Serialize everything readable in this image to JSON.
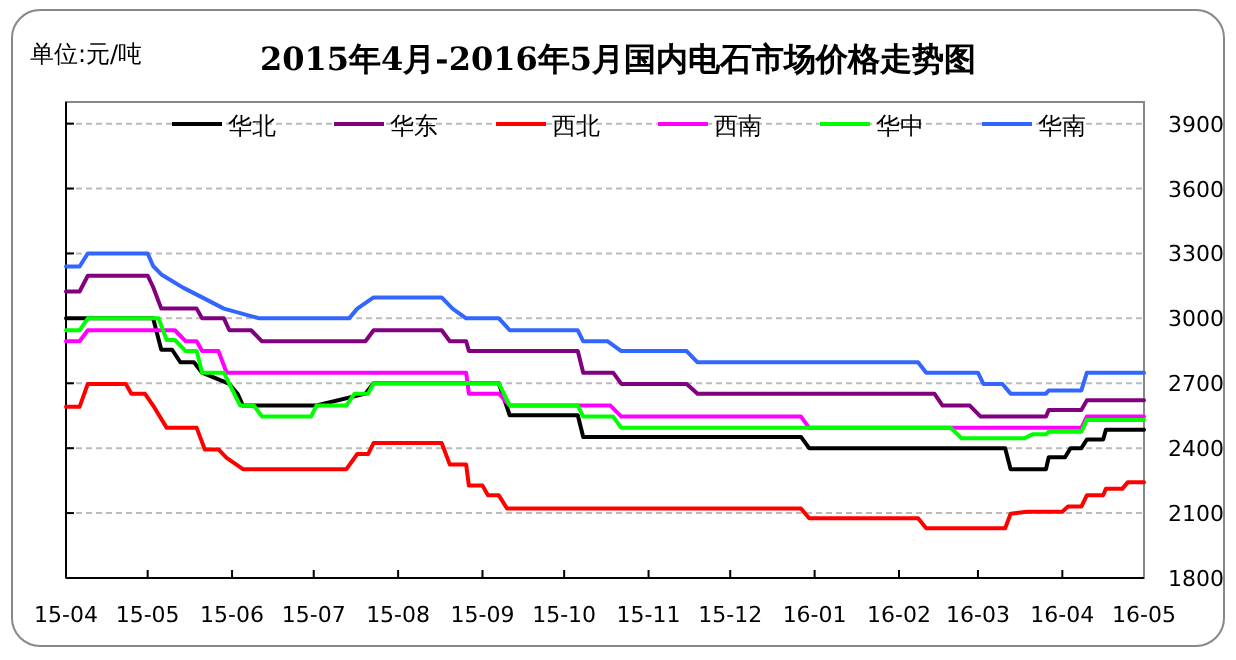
{
  "chart_data": {
    "type": "line",
    "title": "2015年4月-2016年5月国内电石市场价格走势图",
    "ylabel": "单位:元/吨",
    "xlim": [
      "2015-04-01",
      "2016-05-01"
    ],
    "ylim": [
      1800,
      4000
    ],
    "xticks": [
      {
        "value": "2015-04",
        "label": "15-04"
      },
      {
        "value": "2015-05",
        "label": "15-05"
      },
      {
        "value": "2015-06",
        "label": "15-06"
      },
      {
        "value": "2015-07",
        "label": "15-07"
      },
      {
        "value": "2015-08",
        "label": "15-08"
      },
      {
        "value": "2015-09",
        "label": "15-09"
      },
      {
        "value": "2015-10",
        "label": "15-10"
      },
      {
        "value": "2015-11",
        "label": "15-11"
      },
      {
        "value": "2015-12",
        "label": "15-12"
      },
      {
        "value": "2016-01",
        "label": "16-01"
      },
      {
        "value": "2016-02",
        "label": "16-02"
      },
      {
        "value": "2016-03",
        "label": "16-03"
      },
      {
        "value": "2016-04",
        "label": "16-04"
      },
      {
        "value": "2016-05",
        "label": "16-05"
      }
    ],
    "yticks": [
      1800,
      2100,
      2400,
      2700,
      3000,
      3300,
      3600,
      3900
    ],
    "grid": "y",
    "legend": "top",
    "marker": "none",
    "line_style": "solid",
    "series": [
      {
        "name": "华北",
        "color": "#000000",
        "x": [
          "2015-04-01",
          "2015-04-09",
          "2015-05-03",
          "2015-05-06",
          "2015-05-10",
          "2015-05-13",
          "2015-05-18",
          "2015-05-21",
          "2015-05-31",
          "2015-06-03",
          "2015-06-05",
          "2015-07-02",
          "2015-07-20",
          "2015-07-23",
          "2015-09-07",
          "2015-09-11",
          "2015-10-06",
          "2015-10-08",
          "2015-12-27",
          "2015-12-30",
          "2016-03-11",
          "2016-03-13",
          "2016-03-26",
          "2016-03-27",
          "2016-04-02",
          "2016-04-04",
          "2016-04-08",
          "2016-04-10",
          "2016-04-16",
          "2016-04-17",
          "2016-05-01"
        ],
        "values": [
          3000,
          3000,
          3000,
          2855,
          2855,
          2797,
          2797,
          2749,
          2697,
          2652,
          2597,
          2597,
          2652,
          2700,
          2700,
          2552,
          2552,
          2452,
          2452,
          2400,
          2400,
          2303,
          2303,
          2358,
          2358,
          2400,
          2400,
          2440,
          2440,
          2485,
          2485
        ]
      },
      {
        "name": "华东",
        "color": "#800080",
        "x": [
          "2015-04-01",
          "2015-04-06",
          "2015-04-09",
          "2015-05-01",
          "2015-05-03",
          "2015-05-06",
          "2015-05-19",
          "2015-05-21",
          "2015-05-29",
          "2015-05-31",
          "2015-06-08",
          "2015-06-12",
          "2015-07-20",
          "2015-07-23",
          "2015-08-17",
          "2015-08-20",
          "2015-08-26",
          "2015-08-27",
          "2015-10-06",
          "2015-10-08",
          "2015-10-19",
          "2015-10-22",
          "2015-11-15",
          "2015-11-19",
          "2016-02-14",
          "2016-02-17",
          "2016-02-27",
          "2016-03-02",
          "2016-03-26",
          "2016-03-27",
          "2016-04-08",
          "2016-04-10",
          "2016-05-01"
        ],
        "values": [
          3124,
          3124,
          3197,
          3197,
          3145,
          3045,
          3045,
          3000,
          3000,
          2945,
          2945,
          2894,
          2894,
          2945,
          2945,
          2894,
          2894,
          2849,
          2849,
          2749,
          2749,
          2697,
          2697,
          2652,
          2652,
          2597,
          2597,
          2546,
          2546,
          2576,
          2576,
          2621,
          2621
        ]
      },
      {
        "name": "西北",
        "color": "#ff0000",
        "x": [
          "2015-04-01",
          "2015-04-06",
          "2015-04-09",
          "2015-04-23",
          "2015-04-25",
          "2015-04-30",
          "2015-05-03",
          "2015-05-08",
          "2015-05-19",
          "2015-05-22",
          "2015-05-27",
          "2015-05-30",
          "2015-06-05",
          "2015-07-13",
          "2015-07-17",
          "2015-07-21",
          "2015-07-23",
          "2015-08-17",
          "2015-08-20",
          "2015-08-26",
          "2015-08-27",
          "2015-09-01",
          "2015-09-03",
          "2015-09-07",
          "2015-09-10",
          "2015-12-27",
          "2015-12-30",
          "2016-02-08",
          "2016-02-11",
          "2016-03-11",
          "2016-03-13",
          "2016-03-19",
          "2016-04-01",
          "2016-04-03",
          "2016-04-08",
          "2016-04-10",
          "2016-04-16",
          "2016-04-17",
          "2016-04-23",
          "2016-04-25",
          "2016-05-01"
        ],
        "values": [
          2591,
          2591,
          2697,
          2697,
          2652,
          2652,
          2597,
          2494,
          2494,
          2394,
          2394,
          2355,
          2303,
          2303,
          2373,
          2373,
          2424,
          2424,
          2324,
          2324,
          2227,
          2227,
          2182,
          2182,
          2121,
          2121,
          2076,
          2076,
          2030,
          2030,
          2097,
          2106,
          2106,
          2130,
          2130,
          2182,
          2182,
          2212,
          2212,
          2242,
          2242
        ]
      },
      {
        "name": "西南",
        "color": "#ff00ff",
        "x": [
          "2015-04-01",
          "2015-04-06",
          "2015-04-09",
          "2015-05-11",
          "2015-05-15",
          "2015-05-19",
          "2015-05-21",
          "2015-05-27",
          "2015-05-30",
          "2015-08-26",
          "2015-08-27",
          "2015-09-07",
          "2015-09-11",
          "2015-10-18",
          "2015-10-22",
          "2015-12-27",
          "2015-12-30",
          "2016-04-08",
          "2016-04-10",
          "2016-05-01"
        ],
        "values": [
          2894,
          2894,
          2945,
          2945,
          2894,
          2894,
          2849,
          2849,
          2749,
          2749,
          2652,
          2652,
          2597,
          2597,
          2546,
          2546,
          2494,
          2494,
          2546,
          2546
        ]
      },
      {
        "name": "华中",
        "color": "#00ff00",
        "x": [
          "2015-04-01",
          "2015-04-06",
          "2015-04-09",
          "2015-05-05",
          "2015-05-08",
          "2015-05-11",
          "2015-05-15",
          "2015-05-19",
          "2015-05-21",
          "2015-05-29",
          "2015-05-31",
          "2015-06-04",
          "2015-06-09",
          "2015-06-12",
          "2015-06-30",
          "2015-07-02",
          "2015-07-13",
          "2015-07-16",
          "2015-07-21",
          "2015-07-23",
          "2015-09-07",
          "2015-09-11",
          "2015-10-06",
          "2015-10-08",
          "2015-10-19",
          "2015-10-22",
          "2016-02-20",
          "2016-02-24",
          "2016-03-18",
          "2016-03-21",
          "2016-03-26",
          "2016-03-27",
          "2016-04-08",
          "2016-04-10",
          "2016-05-01"
        ],
        "values": [
          2945,
          2945,
          3000,
          3000,
          2900,
          2900,
          2849,
          2849,
          2749,
          2749,
          2697,
          2597,
          2597,
          2546,
          2546,
          2597,
          2597,
          2652,
          2652,
          2700,
          2700,
          2597,
          2597,
          2546,
          2546,
          2494,
          2494,
          2446,
          2446,
          2464,
          2464,
          2476,
          2476,
          2530,
          2530
        ]
      },
      {
        "name": "华南",
        "color": "#3366ff",
        "x": [
          "2015-04-01",
          "2015-04-06",
          "2015-04-09",
          "2015-05-01",
          "2015-05-03",
          "2015-05-06",
          "2015-05-14",
          "2015-05-21",
          "2015-05-29",
          "2015-06-11",
          "2015-07-14",
          "2015-07-17",
          "2015-07-23",
          "2015-08-17",
          "2015-08-21",
          "2015-08-26",
          "2015-09-07",
          "2015-09-11",
          "2015-10-06",
          "2015-10-08",
          "2015-10-17",
          "2015-10-22",
          "2015-11-15",
          "2015-11-19",
          "2016-02-08",
          "2016-02-11",
          "2016-03-01",
          "2016-03-03",
          "2016-03-10",
          "2016-03-13",
          "2016-03-26",
          "2016-03-27",
          "2016-04-08",
          "2016-04-10",
          "2016-05-01"
        ],
        "values": [
          3240,
          3240,
          3300,
          3300,
          3242,
          3203,
          3142,
          3097,
          3045,
          3000,
          3000,
          3045,
          3097,
          3097,
          3045,
          3000,
          3000,
          2945,
          2945,
          2894,
          2894,
          2849,
          2849,
          2797,
          2797,
          2749,
          2749,
          2697,
          2697,
          2652,
          2652,
          2667,
          2667,
          2749,
          2749
        ]
      }
    ]
  }
}
